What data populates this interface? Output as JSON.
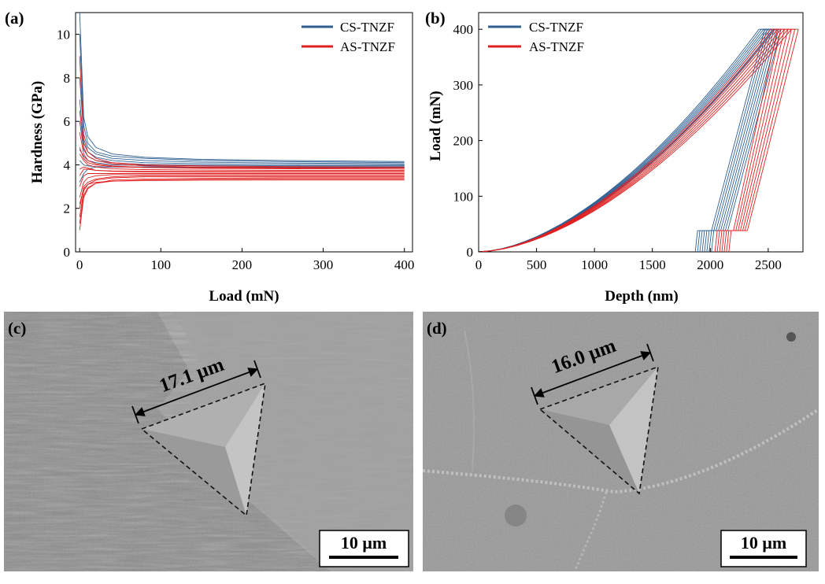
{
  "colors": {
    "cs": "#2e5f93",
    "as": "#e02020",
    "sem_background": "#9b9b9b"
  },
  "panels": {
    "a": {
      "label": "(a)"
    },
    "b": {
      "label": "(b)"
    },
    "c": {
      "label": "(c)",
      "measurement": "17.1 μm",
      "scale_bar": "10 μm"
    },
    "d": {
      "label": "(d)",
      "measurement": "16.0 μm",
      "scale_bar": "10 μm"
    }
  },
  "chart_data": [
    {
      "id": "a",
      "type": "line",
      "xlabel": "Load (mN)",
      "ylabel": "Hardness (GPa)",
      "xlim": [
        -5,
        410
      ],
      "ylim": [
        0,
        11
      ],
      "xticks": [
        0,
        100,
        200,
        300,
        400
      ],
      "yticks": [
        0,
        2,
        4,
        6,
        8,
        10
      ],
      "legend": [
        "CS-TNZF",
        "AS-TNZF"
      ],
      "legend_position": "top-right",
      "series": [
        {
          "name": "CS-TNZF",
          "group": "cs",
          "initial": 11.0,
          "final": 4.15,
          "x": [
            0,
            5,
            10,
            20,
            40,
            80,
            150,
            250,
            400
          ],
          "y": [
            11.0,
            6.2,
            5.3,
            4.8,
            4.5,
            4.35,
            4.25,
            4.2,
            4.15
          ]
        },
        {
          "name": "CS-TNZF",
          "group": "cs",
          "initial": 10.0,
          "final": 4.1,
          "x": [
            0,
            5,
            10,
            20,
            40,
            80,
            150,
            250,
            400
          ],
          "y": [
            10.0,
            5.8,
            5.0,
            4.6,
            4.4,
            4.3,
            4.2,
            4.15,
            4.1
          ]
        },
        {
          "name": "CS-TNZF",
          "group": "cs",
          "initial": 8.0,
          "final": 4.05,
          "x": [
            0,
            5,
            10,
            20,
            40,
            80,
            150,
            250,
            400
          ],
          "y": [
            8.0,
            5.4,
            4.8,
            4.5,
            4.3,
            4.2,
            4.12,
            4.08,
            4.05
          ]
        },
        {
          "name": "CS-TNZF",
          "group": "cs",
          "initial": 7.0,
          "final": 4.0,
          "x": [
            0,
            5,
            10,
            20,
            40,
            80,
            150,
            250,
            400
          ],
          "y": [
            7.0,
            5.0,
            4.6,
            4.35,
            4.2,
            4.1,
            4.05,
            4.02,
            4.0
          ]
        },
        {
          "name": "CS-TNZF",
          "group": "cs",
          "initial": 6.0,
          "final": 3.95,
          "x": [
            0,
            5,
            10,
            20,
            40,
            80,
            150,
            250,
            400
          ],
          "y": [
            6.0,
            4.7,
            4.4,
            4.2,
            4.1,
            4.02,
            3.98,
            3.96,
            3.95
          ]
        },
        {
          "name": "CS-TNZF",
          "group": "cs",
          "initial": 4.7,
          "final": 3.95,
          "x": [
            0,
            5,
            10,
            20,
            40,
            80,
            150,
            250,
            400
          ],
          "y": [
            4.7,
            4.4,
            4.2,
            4.1,
            4.0,
            3.98,
            3.96,
            3.95,
            3.95
          ]
        },
        {
          "name": "CS-TNZF",
          "group": "cs",
          "initial": 3.2,
          "final": 3.9,
          "x": [
            0,
            5,
            10,
            20,
            40,
            80,
            150,
            250,
            400
          ],
          "y": [
            3.2,
            3.6,
            3.8,
            3.9,
            3.9,
            3.9,
            3.9,
            3.9,
            3.9
          ]
        },
        {
          "name": "CS-TNZF",
          "group": "cs",
          "initial": 4.2,
          "final": 3.88,
          "x": [
            0,
            5,
            10,
            20,
            40,
            80,
            150,
            250,
            400
          ],
          "y": [
            4.2,
            4.0,
            3.95,
            3.92,
            3.9,
            3.9,
            3.89,
            3.88,
            3.88
          ]
        },
        {
          "name": "AS-TNZF",
          "group": "as",
          "initial": 9.0,
          "final": 3.9,
          "x": [
            0,
            5,
            10,
            20,
            40,
            80,
            150,
            250,
            400
          ],
          "y": [
            9.0,
            5.2,
            4.6,
            4.3,
            4.1,
            4.0,
            3.95,
            3.92,
            3.9
          ]
        },
        {
          "name": "AS-TNZF",
          "group": "as",
          "initial": 6.5,
          "final": 3.85,
          "x": [
            0,
            5,
            10,
            20,
            40,
            80,
            150,
            250,
            400
          ],
          "y": [
            6.5,
            4.8,
            4.4,
            4.2,
            4.05,
            3.95,
            3.9,
            3.87,
            3.85
          ]
        },
        {
          "name": "AS-TNZF",
          "group": "as",
          "initial": 5.5,
          "final": 3.8,
          "x": [
            0,
            5,
            10,
            20,
            40,
            80,
            150,
            250,
            400
          ],
          "y": [
            5.5,
            4.5,
            4.2,
            4.05,
            3.95,
            3.88,
            3.84,
            3.82,
            3.8
          ]
        },
        {
          "name": "AS-TNZF",
          "group": "as",
          "initial": 4.5,
          "final": 3.75,
          "x": [
            0,
            5,
            10,
            20,
            40,
            80,
            150,
            250,
            400
          ],
          "y": [
            4.5,
            4.2,
            4.0,
            3.9,
            3.82,
            3.78,
            3.76,
            3.75,
            3.75
          ]
        },
        {
          "name": "AS-TNZF",
          "group": "as",
          "initial": 3.5,
          "final": 3.7,
          "x": [
            0,
            5,
            10,
            20,
            40,
            80,
            150,
            250,
            400
          ],
          "y": [
            3.5,
            3.8,
            3.8,
            3.75,
            3.72,
            3.7,
            3.7,
            3.7,
            3.7
          ]
        },
        {
          "name": "AS-TNZF",
          "group": "as",
          "initial": 3.0,
          "final": 3.6,
          "x": [
            0,
            5,
            10,
            20,
            40,
            80,
            150,
            250,
            400
          ],
          "y": [
            3.0,
            3.5,
            3.6,
            3.6,
            3.6,
            3.6,
            3.6,
            3.6,
            3.6
          ]
        },
        {
          "name": "AS-TNZF",
          "group": "as",
          "initial": 2.5,
          "final": 3.55,
          "x": [
            0,
            5,
            10,
            20,
            40,
            80,
            150,
            250,
            400
          ],
          "y": [
            2.5,
            3.2,
            3.4,
            3.5,
            3.55,
            3.55,
            3.55,
            3.55,
            3.55
          ]
        },
        {
          "name": "AS-TNZF",
          "group": "as",
          "initial": 2.0,
          "final": 3.5,
          "x": [
            0,
            5,
            10,
            20,
            40,
            80,
            150,
            250,
            400
          ],
          "y": [
            2.0,
            3.0,
            3.2,
            3.35,
            3.45,
            3.5,
            3.5,
            3.5,
            3.5
          ]
        },
        {
          "name": "AS-TNZF",
          "group": "as",
          "initial": 1.6,
          "final": 3.45,
          "x": [
            0,
            5,
            10,
            20,
            40,
            80,
            150,
            250,
            400
          ],
          "y": [
            1.6,
            2.8,
            3.1,
            3.3,
            3.4,
            3.45,
            3.45,
            3.45,
            3.45
          ]
        },
        {
          "name": "AS-TNZF",
          "group": "as",
          "initial": 1.0,
          "final": 3.4,
          "x": [
            0,
            5,
            10,
            20,
            40,
            80,
            150,
            250,
            400
          ],
          "y": [
            1.0,
            2.5,
            2.9,
            3.15,
            3.3,
            3.35,
            3.38,
            3.4,
            3.4
          ]
        },
        {
          "name": "AS-TNZF",
          "group": "as",
          "initial": 1.3,
          "final": 3.35,
          "x": [
            0,
            5,
            10,
            20,
            40,
            80,
            150,
            250,
            400
          ],
          "y": [
            1.3,
            2.6,
            2.95,
            3.15,
            3.25,
            3.3,
            3.33,
            3.35,
            3.35
          ]
        },
        {
          "name": "AS-TNZF",
          "group": "as",
          "initial": 2.2,
          "final": 3.3,
          "x": [
            0,
            5,
            10,
            20,
            40,
            80,
            150,
            250,
            400
          ],
          "y": [
            2.2,
            2.9,
            3.1,
            3.2,
            3.25,
            3.28,
            3.3,
            3.3,
            3.3
          ]
        },
        {
          "name": "AS-TNZF",
          "group": "as",
          "initial": 3.8,
          "final": 3.65,
          "x": [
            0,
            5,
            10,
            20,
            40,
            80,
            150,
            250,
            400
          ],
          "y": [
            3.8,
            3.9,
            3.85,
            3.75,
            3.7,
            3.67,
            3.66,
            3.65,
            3.65
          ]
        },
        {
          "name": "AS-TNZF",
          "group": "as",
          "initial": 4.8,
          "final": 3.85,
          "x": [
            0,
            5,
            10,
            20,
            40,
            80,
            150,
            250,
            400
          ],
          "y": [
            4.8,
            4.3,
            4.1,
            4.0,
            3.92,
            3.88,
            3.86,
            3.85,
            3.85
          ]
        }
      ]
    },
    {
      "id": "b",
      "type": "line",
      "xlabel": "Depth (nm)",
      "ylabel": "Load (mN)",
      "xlim": [
        0,
        2800
      ],
      "ylim": [
        0,
        430
      ],
      "xticks": [
        0,
        500,
        1000,
        1500,
        2000,
        2500
      ],
      "yticks": [
        0,
        100,
        200,
        300,
        400
      ],
      "legend": [
        "CS-TNZF",
        "AS-TNZF"
      ],
      "legend_position": "top-left",
      "max_load": 400,
      "hold_load": 38,
      "series": [
        {
          "name": "CS-TNZF",
          "group": "cs",
          "max_depth": 2420,
          "max_depth_hold": 2470,
          "residual_depth": 1870,
          "hold_depth_start": 1890,
          "hold_depth_end": 2010
        },
        {
          "name": "CS-TNZF",
          "group": "cs",
          "max_depth": 2440,
          "max_depth_hold": 2490,
          "residual_depth": 1890,
          "hold_depth_start": 1910,
          "hold_depth_end": 2030
        },
        {
          "name": "CS-TNZF",
          "group": "cs",
          "max_depth": 2460,
          "max_depth_hold": 2510,
          "residual_depth": 1910,
          "hold_depth_start": 1930,
          "hold_depth_end": 2050
        },
        {
          "name": "CS-TNZF",
          "group": "cs",
          "max_depth": 2480,
          "max_depth_hold": 2530,
          "residual_depth": 1930,
          "hold_depth_start": 1950,
          "hold_depth_end": 2070
        },
        {
          "name": "CS-TNZF",
          "group": "cs",
          "max_depth": 2500,
          "max_depth_hold": 2550,
          "residual_depth": 1950,
          "hold_depth_start": 1970,
          "hold_depth_end": 2090
        },
        {
          "name": "CS-TNZF",
          "group": "cs",
          "max_depth": 2520,
          "max_depth_hold": 2570,
          "residual_depth": 1970,
          "hold_depth_start": 1990,
          "hold_depth_end": 2110
        },
        {
          "name": "CS-TNZF",
          "group": "cs",
          "max_depth": 2540,
          "max_depth_hold": 2590,
          "residual_depth": 1990,
          "hold_depth_start": 2010,
          "hold_depth_end": 2130
        },
        {
          "name": "CS-TNZF",
          "group": "cs",
          "max_depth": 2560,
          "max_depth_hold": 2610,
          "residual_depth": 2010,
          "hold_depth_start": 2030,
          "hold_depth_end": 2150
        },
        {
          "name": "AS-TNZF",
          "group": "as",
          "max_depth": 2520,
          "max_depth_hold": 2580,
          "residual_depth": 2040,
          "hold_depth_start": 2060,
          "hold_depth_end": 2200
        },
        {
          "name": "AS-TNZF",
          "group": "as",
          "max_depth": 2550,
          "max_depth_hold": 2610,
          "residual_depth": 2060,
          "hold_depth_start": 2080,
          "hold_depth_end": 2220
        },
        {
          "name": "AS-TNZF",
          "group": "as",
          "max_depth": 2580,
          "max_depth_hold": 2640,
          "residual_depth": 2080,
          "hold_depth_start": 2100,
          "hold_depth_end": 2240
        },
        {
          "name": "AS-TNZF",
          "group": "as",
          "max_depth": 2610,
          "max_depth_hold": 2670,
          "residual_depth": 2100,
          "hold_depth_start": 2120,
          "hold_depth_end": 2260
        },
        {
          "name": "AS-TNZF",
          "group": "as",
          "max_depth": 2640,
          "max_depth_hold": 2700,
          "residual_depth": 2120,
          "hold_depth_start": 2140,
          "hold_depth_end": 2280
        },
        {
          "name": "AS-TNZF",
          "group": "as",
          "max_depth": 2670,
          "max_depth_hold": 2730,
          "residual_depth": 2140,
          "hold_depth_start": 2160,
          "hold_depth_end": 2300
        },
        {
          "name": "AS-TNZF",
          "group": "as",
          "max_depth": 2700,
          "max_depth_hold": 2760,
          "residual_depth": 2160,
          "hold_depth_start": 2180,
          "hold_depth_end": 2320
        }
      ]
    }
  ]
}
